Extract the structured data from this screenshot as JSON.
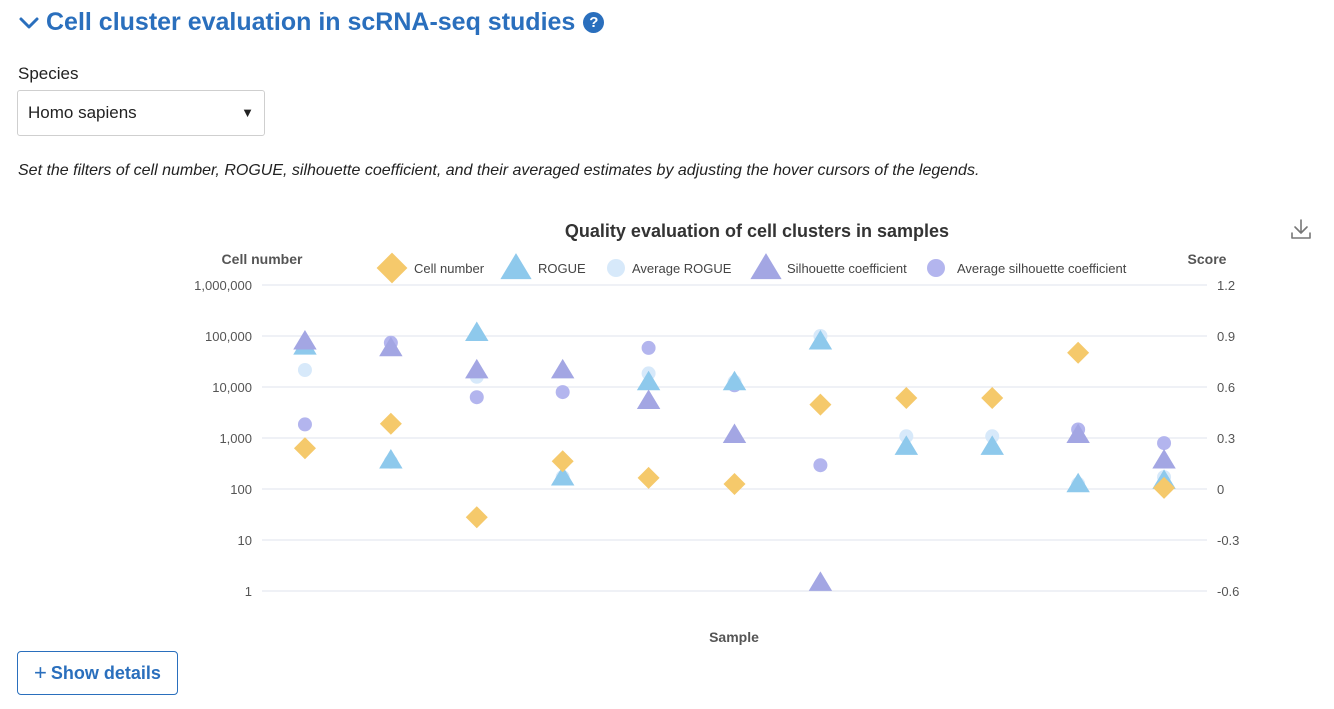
{
  "section": {
    "title": "Cell cluster evaluation in scRNA-seq studies",
    "help": "?"
  },
  "species": {
    "label": "Species",
    "value": "Homo sapiens",
    "arrow": "▼"
  },
  "instruction": "Set the filters of cell number, ROGUE, silhouette coefficient, and their averaged estimates by adjusting the hover cursors of the legends.",
  "show_details": {
    "label": "Show details",
    "plus": "+"
  },
  "chart_data": {
    "type": "scatter",
    "title": "Quality evaluation of cell clusters in samples",
    "xlabel": "Sample",
    "ylabel_left": "Cell number",
    "ylabel_right": "Score",
    "left_axis": {
      "scale": "log",
      "range": [
        1,
        1000000
      ],
      "ticks": [
        1,
        10,
        100,
        1000,
        10000,
        100000,
        1000000
      ],
      "tick_labels": [
        "1",
        "10",
        "100",
        "1,000",
        "10,000",
        "100,000",
        "1,000,000"
      ]
    },
    "right_axis": {
      "range": [
        -0.6,
        1.2
      ],
      "ticks": [
        -0.6,
        -0.3,
        0,
        0.3,
        0.6,
        0.9,
        1.2
      ],
      "tick_labels": [
        "-0.6",
        "-0.3",
        "0",
        "0.3",
        "0.6",
        "0.9",
        "1.2"
      ]
    },
    "legend_position": "top",
    "samples": 11,
    "series": [
      {
        "name": "Cell number",
        "axis": "left",
        "marker": "diamond",
        "color": "#f5c96b",
        "values": [
          630,
          1900,
          28,
          350,
          165,
          125,
          4500,
          6100,
          6100,
          47000,
          105
        ]
      },
      {
        "name": "ROGUE",
        "axis": "right",
        "marker": "triangle",
        "color": "#8ec9ec",
        "values": [
          0.84,
          0.17,
          0.92,
          0.07,
          0.63,
          0.63,
          0.87,
          0.25,
          0.25,
          0.03,
          0.05
        ]
      },
      {
        "name": "Average ROGUE",
        "axis": "right",
        "marker": "circle",
        "color": "#d7e9fa",
        "values": [
          0.7,
          0.16,
          0.66,
          0.07,
          0.68,
          0.63,
          0.9,
          0.31,
          0.31,
          0.03,
          0.07
        ]
      },
      {
        "name": "Silhouette coefficient",
        "axis": "right",
        "marker": "triangle",
        "color": "#a3a6e3",
        "values": [
          0.87,
          0.83,
          0.7,
          0.7,
          0.52,
          0.32,
          -0.55,
          null,
          null,
          0.32,
          0.17
        ]
      },
      {
        "name": "Average silhouette coefficient",
        "axis": "right",
        "marker": "circle",
        "color": "#b3b5ee",
        "values": [
          0.38,
          0.86,
          0.54,
          0.57,
          0.83,
          0.61,
          0.14,
          null,
          null,
          0.35,
          0.27
        ]
      }
    ]
  }
}
